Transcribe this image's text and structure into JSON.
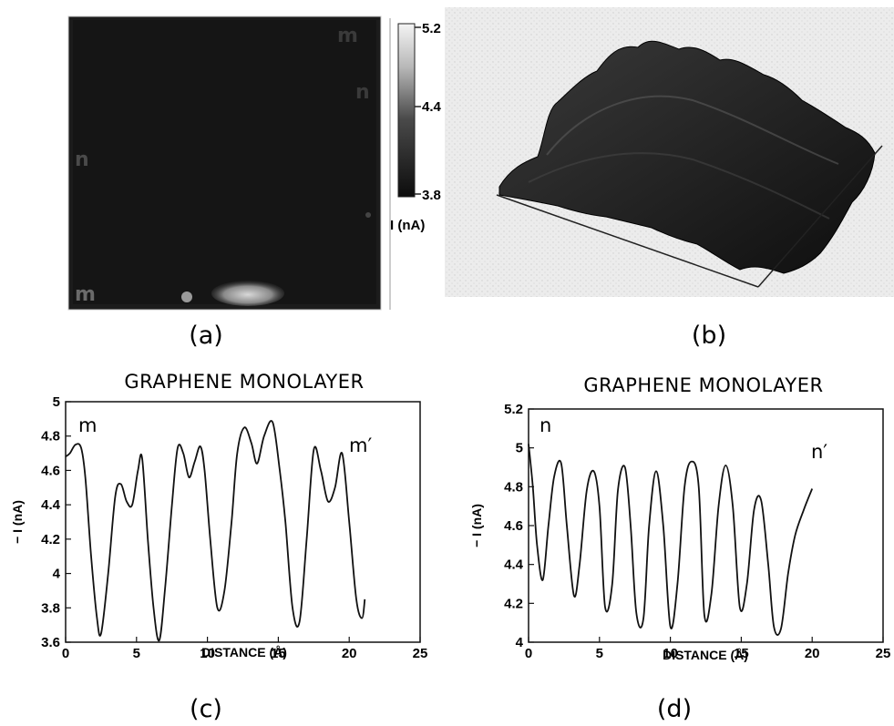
{
  "panel_labels": {
    "a": "(a)",
    "b": "(b)",
    "c": "(c)",
    "d": "(d)"
  },
  "image_a": {
    "corner_labels": {
      "m_top": "m",
      "n_right": "n",
      "n_left": "n",
      "m_bottom": "m"
    },
    "colorbar": {
      "max": "5.2",
      "mid": "4.4",
      "min": "3.8",
      "unit_label": "I (nA)"
    }
  },
  "chart_data": [
    {
      "type": "line",
      "title": "GRAPHENE MONOLAYER",
      "xlabel": "DISTANCE (Å)",
      "ylabel": "− I (nA)",
      "xlim": [
        0,
        25
      ],
      "ylim": [
        3.6,
        5.0
      ],
      "xticks": [
        "0",
        "5",
        "10",
        "15",
        "20",
        "25"
      ],
      "yticks": [
        "3.6",
        "3.8",
        "4",
        "4.2",
        "4.4",
        "4.6",
        "4.8",
        "5"
      ],
      "annotations": {
        "start": "m",
        "end": "m′"
      },
      "series": [
        {
          "x": [
            0.0,
            0.3,
            0.7,
            1.1,
            1.4,
            1.8,
            2.2,
            2.5,
            3.0,
            3.5,
            3.9,
            4.3,
            4.7,
            5.1,
            5.4,
            5.8,
            6.2,
            6.6,
            7.0,
            7.5,
            7.9,
            8.3,
            8.7,
            9.1,
            9.5,
            9.8,
            10.2,
            10.7,
            11.2,
            11.7,
            12.1,
            12.6,
            13.1,
            13.5,
            14.0,
            14.6,
            15.1,
            15.5,
            16.0,
            16.5,
            17.0,
            17.5,
            18.0,
            18.5,
            19.0,
            19.5,
            20.0,
            20.5,
            20.9,
            21.1
          ],
          "y": [
            4.68,
            4.7,
            4.75,
            4.73,
            4.55,
            4.1,
            3.75,
            3.65,
            4.0,
            4.45,
            4.52,
            4.42,
            4.4,
            4.6,
            4.67,
            4.2,
            3.8,
            3.61,
            3.9,
            4.4,
            4.73,
            4.7,
            4.56,
            4.65,
            4.74,
            4.6,
            4.2,
            3.8,
            3.9,
            4.3,
            4.7,
            4.85,
            4.76,
            4.64,
            4.8,
            4.88,
            4.6,
            4.3,
            3.8,
            3.72,
            4.2,
            4.72,
            4.6,
            4.42,
            4.5,
            4.7,
            4.3,
            3.85,
            3.74,
            3.85
          ]
        }
      ]
    },
    {
      "type": "line",
      "title": "GRAPHENE MONOLAYER",
      "xlabel": "DISTANCE (Å)",
      "ylabel": "− I (nA)",
      "xlim": [
        0,
        25
      ],
      "ylim": [
        4.0,
        5.2
      ],
      "xticks": [
        "0",
        "5",
        "10",
        "15",
        "20",
        "25"
      ],
      "yticks": [
        "4",
        "4.2",
        "4.4",
        "4.6",
        "4.8",
        "5",
        "5.2"
      ],
      "annotations": {
        "start": "n",
        "end": "n′"
      },
      "series": [
        {
          "x": [
            0.0,
            0.3,
            0.6,
            1.0,
            1.4,
            1.8,
            2.3,
            2.7,
            3.2,
            3.6,
            4.1,
            4.6,
            5.0,
            5.4,
            5.9,
            6.3,
            6.8,
            7.2,
            7.6,
            8.1,
            8.5,
            9.0,
            9.5,
            10.0,
            10.5,
            11.0,
            11.5,
            12.0,
            12.4,
            12.9,
            13.4,
            13.9,
            14.4,
            14.9,
            15.4,
            15.9,
            16.4,
            16.9,
            17.3,
            17.8,
            18.3,
            18.8,
            19.4,
            20.0
          ],
          "y": [
            5.02,
            4.8,
            4.5,
            4.32,
            4.6,
            4.85,
            4.92,
            4.6,
            4.24,
            4.4,
            4.78,
            4.88,
            4.7,
            4.18,
            4.3,
            4.78,
            4.9,
            4.6,
            4.15,
            4.12,
            4.6,
            4.88,
            4.6,
            4.08,
            4.3,
            4.8,
            4.93,
            4.8,
            4.14,
            4.25,
            4.7,
            4.91,
            4.7,
            4.18,
            4.3,
            4.68,
            4.73,
            4.4,
            4.08,
            4.07,
            4.35,
            4.55,
            4.68,
            4.79
          ]
        }
      ]
    }
  ]
}
